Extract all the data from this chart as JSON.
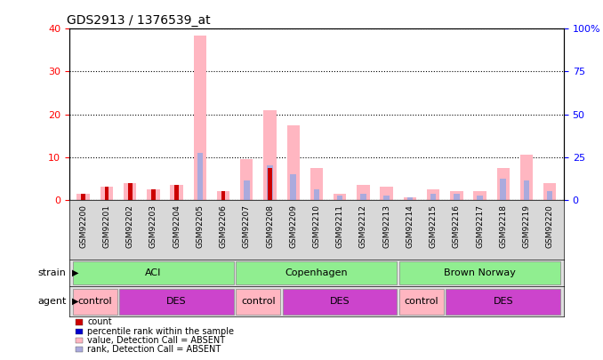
{
  "title": "GDS2913 / 1376539_at",
  "samples": [
    "GSM92200",
    "GSM92201",
    "GSM92202",
    "GSM92203",
    "GSM92204",
    "GSM92205",
    "GSM92206",
    "GSM92207",
    "GSM92208",
    "GSM92209",
    "GSM92210",
    "GSM92211",
    "GSM92212",
    "GSM92213",
    "GSM92214",
    "GSM92215",
    "GSM92216",
    "GSM92217",
    "GSM92218",
    "GSM92219",
    "GSM92220"
  ],
  "absent_value_values": [
    1.5,
    3.0,
    4.0,
    2.5,
    3.5,
    38.5,
    2.0,
    9.5,
    21.0,
    17.5,
    7.5,
    1.5,
    3.5,
    3.0,
    0.5,
    2.5,
    2.0,
    2.0,
    7.5,
    10.5,
    4.0
  ],
  "absent_rank_values": [
    0,
    0,
    0,
    0,
    0,
    11.0,
    0,
    4.5,
    8.0,
    6.0,
    2.5,
    1.0,
    1.5,
    1.0,
    0.5,
    1.5,
    1.5,
    1.0,
    5.0,
    4.5,
    2.0
  ],
  "count_values": [
    1.5,
    3.0,
    4.0,
    2.5,
    3.5,
    0,
    2.0,
    0,
    7.5,
    0,
    0,
    0,
    0,
    0,
    0,
    0,
    0,
    0,
    0,
    0,
    0
  ],
  "rank_values": [
    0,
    0,
    0,
    0,
    0,
    0,
    0,
    0,
    0,
    0,
    0,
    0,
    0,
    0,
    0,
    0,
    0,
    0,
    0,
    0,
    0
  ],
  "ylim_left": [
    0,
    40
  ],
  "ylim_right": [
    0,
    100
  ],
  "yticks_left": [
    0,
    10,
    20,
    30,
    40
  ],
  "yticks_right": [
    0,
    25,
    50,
    75,
    100
  ],
  "strain_groups": [
    {
      "label": "ACI",
      "start": 0,
      "end": 7,
      "color": "#90EE90"
    },
    {
      "label": "Copenhagen",
      "start": 7,
      "end": 14,
      "color": "#90EE90"
    },
    {
      "label": "Brown Norway",
      "start": 14,
      "end": 21,
      "color": "#90EE90"
    }
  ],
  "agent_groups": [
    {
      "label": "control",
      "start": 0,
      "end": 2,
      "color": "#FFB6C1"
    },
    {
      "label": "DES",
      "start": 2,
      "end": 7,
      "color": "#CC44CC"
    },
    {
      "label": "control",
      "start": 7,
      "end": 9,
      "color": "#FFB6C1"
    },
    {
      "label": "DES",
      "start": 9,
      "end": 14,
      "color": "#CC44CC"
    },
    {
      "label": "control",
      "start": 14,
      "end": 16,
      "color": "#FFB6C1"
    },
    {
      "label": "DES",
      "start": 16,
      "end": 21,
      "color": "#CC44CC"
    }
  ],
  "color_count": "#CC0000",
  "color_rank": "#0000CC",
  "color_absent_value": "#FFB6C1",
  "color_absent_rank": "#AAAADD",
  "background_color": "#FFFFFF",
  "plot_bg_color": "#FFFFFF"
}
